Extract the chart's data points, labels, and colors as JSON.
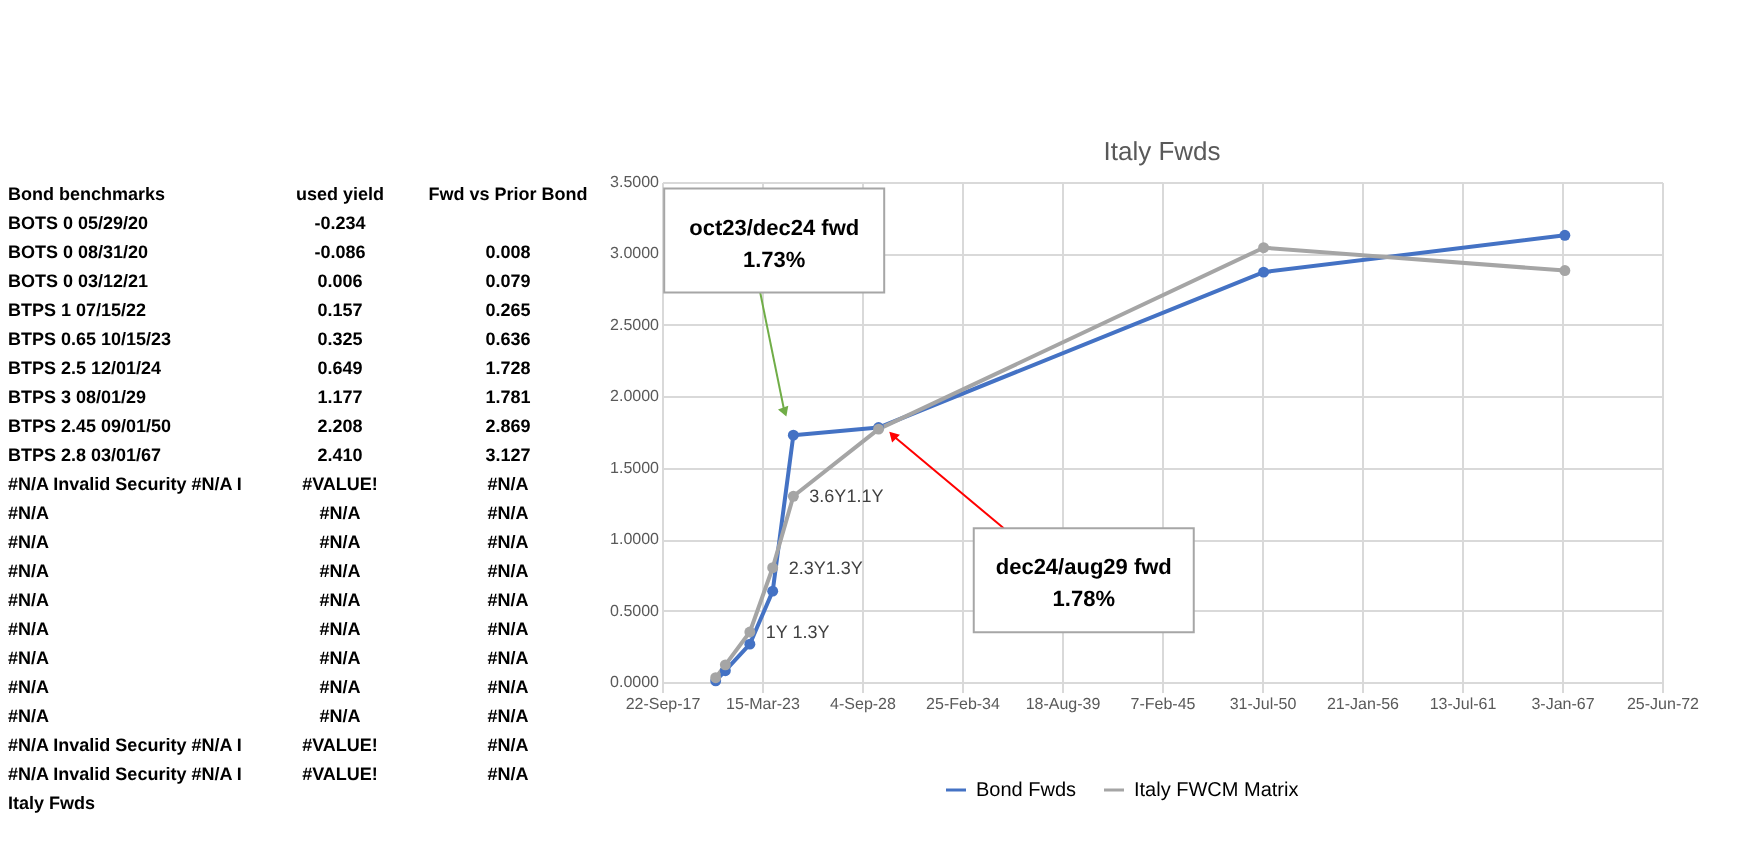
{
  "chart_data": [
    {
      "type": "other",
      "annotations": [
        "Bond benchmarks",
        "used yield",
        "Fwd vs Prior Bond",
        "BOTS 0 05/29/20",
        "-0.234",
        null,
        "BOTS 0 08/31/20",
        "-0.086",
        "0.008",
        "BOTS 0 03/12/21",
        "0.006",
        "0.079",
        "BTPS 1 07/15/22",
        "0.157",
        "0.265",
        "BTPS 0.65 10/15/23",
        "0.325",
        "0.636",
        "BTPS 2.5 12/01/24",
        "0.649",
        "1.728",
        "BTPS 3 08/01/29",
        "1.177",
        "1.781",
        "BTPS 2.45 09/01/50",
        "2.208",
        "2.869",
        "BTPS 2.8 03/01/67",
        "2.410",
        "3.127",
        "#N/A Invalid Security #N/A I",
        "#VALUE!",
        "#N/A",
        "#N/A",
        "#N/A",
        "#N/A",
        "#N/A",
        "#N/A",
        "#N/A",
        "#N/A",
        "#N/A",
        "#N/A",
        "#N/A",
        "#N/A",
        "#N/A",
        "#N/A",
        "#N/A",
        "#N/A",
        "#N/A",
        "#N/A",
        "#N/A",
        "#N/A",
        "#N/A",
        "#N/A",
        "#N/A",
        "#N/A",
        "#N/A",
        "#N/A Invalid Security #N/A I",
        "#VALUE!",
        "#N/A",
        "#N/A Invalid Security #N/A I",
        "#VALUE!",
        "#N/A",
        "Italy Fwds",
        null,
        null
      ]
    },
    {
      "type": "line",
      "title": "Italy Fwds",
      "marker": "circle",
      "line_style": "solid",
      "grid": true,
      "legend": "bottom",
      "x": [
        "2020-08-31",
        "2021-03-12",
        "2022-07-15",
        "2023-10-15",
        "2024-12-01",
        "2029-08-01",
        "2050-09-01",
        "2067-03-01"
      ],
      "series": [
        {
          "name": "Bond Fwds",
          "color": "#4472c4",
          "values": [
            0.008,
            0.079,
            0.265,
            0.636,
            1.728,
            1.781,
            2.869,
            3.127
          ]
        },
        {
          "name": "Italy FWCM Matrix",
          "color": "#a5a5a5",
          "values": [
            0.03,
            0.12,
            0.35,
            0.8,
            1.3,
            1.77,
            3.04,
            2.88
          ]
        }
      ],
      "xlim": [
        "2017-09-22",
        "2072-06-25"
      ],
      "xticks": [
        {
          "value": "2017-09-22",
          "label": "22-Sep-17"
        },
        {
          "value": "2023-03-15",
          "label": "15-Mar-23"
        },
        {
          "value": "2028-09-04",
          "label": "4-Sep-28"
        },
        {
          "value": "2034-02-25",
          "label": "25-Feb-34"
        },
        {
          "value": "2039-08-18",
          "label": "18-Aug-39"
        },
        {
          "value": "2045-02-07",
          "label": "7-Feb-45"
        },
        {
          "value": "2050-07-31",
          "label": "31-Jul-50"
        },
        {
          "value": "2056-01-21",
          "label": "21-Jan-56"
        },
        {
          "value": "2061-07-13",
          "label": "13-Jul-61"
        },
        {
          "value": "2067-01-03",
          "label": "3-Jan-67"
        },
        {
          "value": "2072-06-25",
          "label": "25-Jun-72"
        }
      ],
      "ylim": [
        0,
        3.5
      ],
      "yticks": [
        {
          "value": 0,
          "label": "0.0000"
        },
        {
          "value": 0.5,
          "label": "0.5000"
        },
        {
          "value": 1,
          "label": "1.0000"
        },
        {
          "value": 1.5,
          "label": "1.5000"
        },
        {
          "value": 2,
          "label": "2.0000"
        },
        {
          "value": 2.5,
          "label": "2.5000"
        },
        {
          "value": 3,
          "label": "3.0000"
        },
        {
          "value": 3.5,
          "label": "3.5000"
        }
      ],
      "annotations": [
        {
          "text": "1Y 1.3Y",
          "x": "2022-07-15",
          "y": 0.35
        },
        {
          "text": "2.3Y1.3Y",
          "x": "2023-10-15",
          "y": 0.8
        },
        {
          "text": "3.6Y1.1Y",
          "x": "2024-12-01",
          "y": 1.3
        },
        {
          "text": "oct23/dec24 fwd\n1.73%",
          "x": "2024-06-01",
          "y": 1.9
        },
        {
          "text": "dec24/aug29 fwd\n1.78%",
          "x": "2030-06-01",
          "y": 1.72
        }
      ]
    }
  ]
}
